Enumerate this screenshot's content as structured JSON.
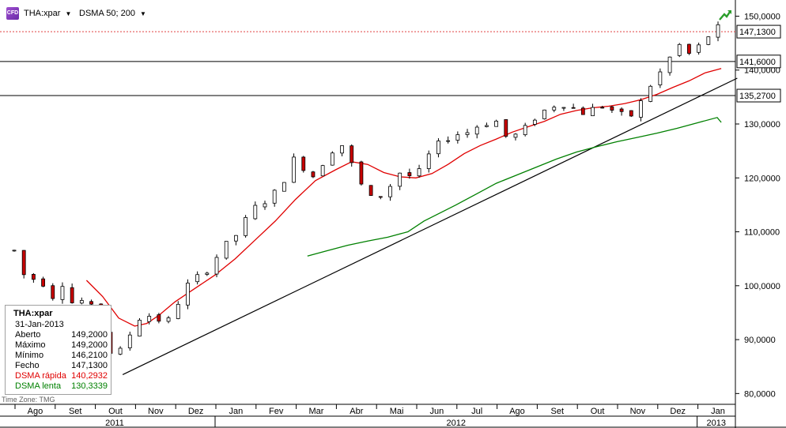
{
  "toolbar": {
    "symbol_icon_text": "CFD",
    "symbol": "THA:xpar",
    "indicator": "DSMA 50; 200"
  },
  "legend": {
    "title": "THA:xpar",
    "date": "31-Jan-2013",
    "rows": [
      {
        "label": "Aberto",
        "value": "149,2000",
        "color": "#000000"
      },
      {
        "label": "Máximo",
        "value": "149,2000",
        "color": "#000000"
      },
      {
        "label": "Mínimo",
        "value": "146,2100",
        "color": "#000000"
      },
      {
        "label": "Fecho",
        "value": "147,1300",
        "color": "#000000"
      },
      {
        "label": "DSMA rápida",
        "value": "140,2932",
        "color": "#e00000"
      },
      {
        "label": "DSMA lenta",
        "value": "130,3339",
        "color": "#008000"
      }
    ]
  },
  "time_zone": "Time Zone: TMG",
  "icons": {
    "trend": "trend-up-icon"
  },
  "chart_data": {
    "type": "candlestick",
    "ylim": [
      78,
      153
    ],
    "y_ticks": [
      {
        "value": 80,
        "label": "80,0000"
      },
      {
        "value": 90,
        "label": "90,0000"
      },
      {
        "value": 100,
        "label": "100,0000"
      },
      {
        "value": 110,
        "label": "110,0000"
      },
      {
        "value": 120,
        "label": "120,0000"
      },
      {
        "value": 130,
        "label": "130,0000"
      },
      {
        "value": 140,
        "label": "140,0000"
      },
      {
        "value": 150,
        "label": "150,0000"
      }
    ],
    "months": [
      "Ago",
      "Set",
      "Out",
      "Nov",
      "Dez",
      "Jan",
      "Fev",
      "Mar",
      "Abr",
      "Mai",
      "Jun",
      "Jul",
      "Ago",
      "Set",
      "Out",
      "Nov",
      "Dez",
      "Jan"
    ],
    "years": [
      {
        "label": "2011",
        "from_month": 0,
        "to_month": 5
      },
      {
        "label": "2012",
        "from_month": 5,
        "to_month": 17
      },
      {
        "label": "2013",
        "from_month": 17,
        "to_month": 18
      }
    ],
    "price_labels": [
      {
        "value": 147.13,
        "label": "147,1300",
        "style": "dotted",
        "color": "#e04040"
      },
      {
        "value": 141.6,
        "label": "141,6000",
        "style": "solid",
        "color": "#000000"
      },
      {
        "value": 135.27,
        "label": "135,2700",
        "style": "solid",
        "color": "#000000"
      }
    ],
    "trendline": {
      "start": [
        2.7,
        83.5
      ],
      "end": [
        18.0,
        138.5
      ]
    },
    "ohlc_monthly_anchors": [
      [
        0.0,
        106.5
      ],
      [
        0.35,
        100.0
      ],
      [
        0.6,
        102.5
      ],
      [
        0.9,
        97.5
      ],
      [
        1.2,
        100.5
      ],
      [
        1.5,
        96.0
      ],
      [
        1.8,
        98.0
      ],
      [
        2.2,
        91.0
      ],
      [
        2.5,
        86.0
      ],
      [
        2.8,
        90.0
      ],
      [
        3.2,
        95.0
      ],
      [
        3.5,
        94.0
      ],
      [
        3.8,
        93.0
      ],
      [
        4.3,
        100.0
      ],
      [
        4.8,
        103.0
      ],
      [
        5.2,
        107.0
      ],
      [
        5.6,
        110.0
      ],
      [
        5.9,
        114.0
      ],
      [
        6.3,
        116.0
      ],
      [
        6.6,
        118.0
      ],
      [
        7.0,
        124.0
      ],
      [
        7.4,
        120.0
      ],
      [
        7.8,
        124.0
      ],
      [
        8.1,
        127.0
      ],
      [
        8.5,
        121.0
      ],
      [
        8.8,
        116.0
      ],
      [
        9.2,
        117.0
      ],
      [
        9.6,
        121.0
      ],
      [
        10.0,
        120.0
      ],
      [
        10.3,
        124.0
      ],
      [
        10.6,
        126.5
      ],
      [
        10.9,
        128.0
      ],
      [
        11.3,
        128.5
      ],
      [
        11.6,
        130.0
      ],
      [
        12.0,
        130.5
      ],
      [
        12.3,
        127.0
      ],
      [
        12.7,
        129.0
      ],
      [
        13.0,
        131.5
      ],
      [
        13.3,
        133.0
      ],
      [
        13.6,
        134.0
      ],
      [
        13.9,
        133.0
      ],
      [
        14.2,
        132.0
      ],
      [
        14.6,
        133.5
      ],
      [
        14.9,
        132.5
      ],
      [
        15.3,
        131.0
      ],
      [
        15.6,
        134.0
      ],
      [
        15.9,
        138.0
      ],
      [
        16.2,
        140.5
      ],
      [
        16.5,
        145.0
      ],
      [
        16.8,
        143.0
      ],
      [
        17.0,
        144.0
      ],
      [
        17.3,
        146.5
      ],
      [
        17.55,
        148.0
      ],
      [
        17.7,
        147.1
      ]
    ],
    "series": [
      {
        "name": "DSMA rápida",
        "color": "#e00000",
        "points": [
          [
            1.8,
            101.0
          ],
          [
            2.2,
            98.0
          ],
          [
            2.6,
            94.0
          ],
          [
            3.0,
            92.5
          ],
          [
            3.3,
            93.0
          ],
          [
            3.6,
            94.5
          ],
          [
            4.0,
            97.0
          ],
          [
            4.5,
            99.5
          ],
          [
            5.0,
            102.0
          ],
          [
            5.5,
            105.0
          ],
          [
            6.0,
            108.5
          ],
          [
            6.5,
            112.0
          ],
          [
            7.0,
            116.0
          ],
          [
            7.5,
            119.5
          ],
          [
            8.0,
            121.5
          ],
          [
            8.4,
            123.0
          ],
          [
            8.8,
            122.5
          ],
          [
            9.2,
            121.0
          ],
          [
            9.6,
            120.2
          ],
          [
            10.0,
            120.0
          ],
          [
            10.4,
            120.8
          ],
          [
            10.8,
            122.5
          ],
          [
            11.2,
            124.5
          ],
          [
            11.6,
            126.0
          ],
          [
            12.0,
            127.2
          ],
          [
            12.4,
            128.5
          ],
          [
            12.8,
            129.5
          ],
          [
            13.2,
            130.5
          ],
          [
            13.6,
            131.8
          ],
          [
            14.0,
            132.5
          ],
          [
            14.4,
            133.0
          ],
          [
            14.8,
            133.3
          ],
          [
            15.2,
            133.8
          ],
          [
            15.6,
            134.5
          ],
          [
            16.0,
            135.5
          ],
          [
            16.4,
            136.8
          ],
          [
            16.8,
            138.0
          ],
          [
            17.2,
            139.5
          ],
          [
            17.6,
            140.3
          ]
        ]
      },
      {
        "name": "DSMA lenta",
        "color": "#008000",
        "points": [
          [
            7.3,
            105.5
          ],
          [
            7.8,
            106.5
          ],
          [
            8.3,
            107.5
          ],
          [
            8.8,
            108.3
          ],
          [
            9.3,
            109.0
          ],
          [
            9.8,
            110.0
          ],
          [
            10.2,
            112.0
          ],
          [
            10.6,
            113.5
          ],
          [
            11.0,
            115.0
          ],
          [
            11.5,
            117.0
          ],
          [
            12.0,
            119.0
          ],
          [
            12.5,
            120.5
          ],
          [
            13.0,
            122.0
          ],
          [
            13.5,
            123.5
          ],
          [
            14.0,
            124.8
          ],
          [
            14.5,
            125.8
          ],
          [
            15.0,
            126.7
          ],
          [
            15.5,
            127.5
          ],
          [
            16.0,
            128.3
          ],
          [
            16.5,
            129.2
          ],
          [
            17.0,
            130.2
          ],
          [
            17.5,
            131.2
          ],
          [
            17.6,
            130.3
          ]
        ]
      }
    ]
  }
}
